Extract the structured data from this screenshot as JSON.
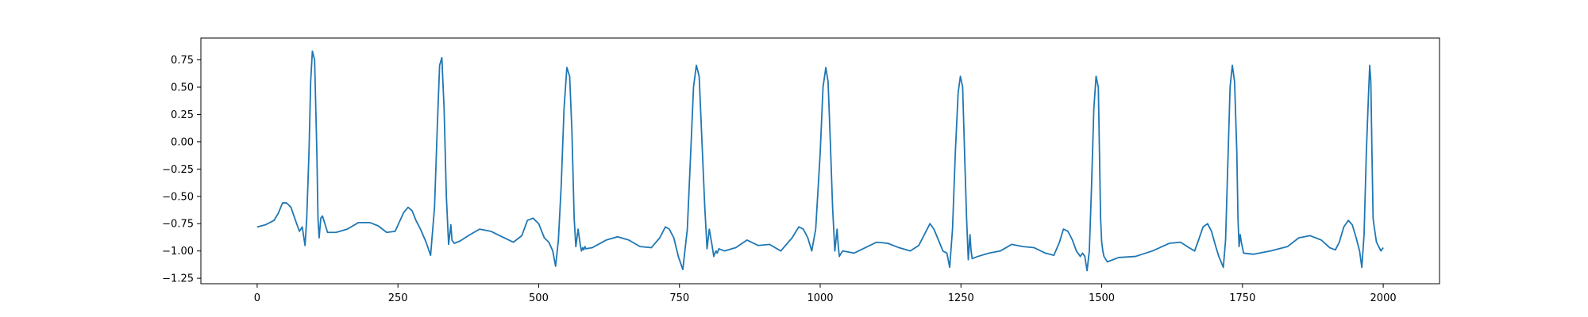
{
  "chart_data": {
    "type": "line",
    "title": "",
    "xlabel": "",
    "ylabel": "",
    "xlim": [
      -100,
      2100
    ],
    "ylim": [
      -1.3,
      0.95
    ],
    "xticks": [
      0,
      250,
      500,
      750,
      1000,
      1250,
      1500,
      1750,
      2000
    ],
    "xtick_labels": [
      "0",
      "250",
      "500",
      "750",
      "1000",
      "1250",
      "1500",
      "1750",
      "2000"
    ],
    "yticks": [
      0.75,
      0.5,
      0.25,
      0.0,
      -0.25,
      -0.5,
      -0.75,
      -1.0,
      -1.25
    ],
    "ytick_labels": [
      "0.75",
      "0.50",
      "0.25",
      "0.00",
      "−0.25",
      "−0.50",
      "−0.75",
      "−1.00",
      "−1.25"
    ],
    "grid": false,
    "series": [
      {
        "color": "#1f77b4",
        "x": [
          0,
          15,
          30,
          38,
          45,
          52,
          60,
          68,
          75,
          80,
          85,
          88,
          92,
          95,
          98,
          102,
          106,
          108,
          110,
          113,
          116,
          125,
          140,
          160,
          180,
          200,
          215,
          230,
          245,
          260,
          268,
          275,
          282,
          290,
          300,
          308,
          315,
          320,
          324,
          328,
          332,
          336,
          340,
          342,
          344,
          346,
          350,
          360,
          375,
          395,
          415,
          435,
          455,
          470,
          480,
          490,
          500,
          510,
          518,
          525,
          530,
          535,
          540,
          545,
          550,
          555,
          559,
          563,
          566,
          570,
          574,
          576,
          578,
          580,
          582,
          584,
          595,
          620,
          640,
          660,
          680,
          700,
          715,
          725,
          732,
          740,
          748,
          756,
          764,
          770,
          775,
          780,
          785,
          790,
          795,
          799,
          803,
          807,
          811,
          813,
          815,
          817,
          820,
          830,
          850,
          870,
          890,
          910,
          930,
          950,
          962,
          970,
          978,
          985,
          992,
          1000,
          1005,
          1010,
          1014,
          1018,
          1022,
          1026,
          1030,
          1032,
          1034,
          1036,
          1040,
          1060,
          1080,
          1100,
          1120,
          1140,
          1160,
          1175,
          1185,
          1195,
          1202,
          1210,
          1218,
          1225,
          1230,
          1235,
          1240,
          1245,
          1249,
          1253,
          1257,
          1260,
          1263,
          1266,
          1268,
          1270,
          1280,
          1300,
          1320,
          1340,
          1360,
          1380,
          1400,
          1415,
          1425,
          1432,
          1440,
          1448,
          1455,
          1462,
          1466,
          1470,
          1474,
          1478,
          1482,
          1486,
          1490,
          1494,
          1496,
          1498,
          1500,
          1502,
          1504,
          1510,
          1530,
          1560,
          1590,
          1620,
          1640,
          1655,
          1665,
          1672,
          1680,
          1688,
          1695,
          1702,
          1708,
          1712,
          1716,
          1720,
          1724,
          1728,
          1732,
          1736,
          1740,
          1742,
          1744,
          1746,
          1748,
          1752,
          1770,
          1800,
          1830,
          1850,
          1870,
          1890,
          1905,
          1915,
          1922,
          1930,
          1938,
          1945,
          1952,
          1958,
          1962,
          1966,
          1970,
          1974,
          1976,
          1978,
          1980,
          1982,
          1984,
          1988,
          1992,
          1996,
          2000
        ],
        "y": [
          -0.78,
          -0.76,
          -0.72,
          -0.65,
          -0.56,
          -0.56,
          -0.6,
          -0.72,
          -0.82,
          -0.78,
          -0.95,
          -0.7,
          -0.1,
          0.55,
          0.83,
          0.75,
          -0.1,
          -0.7,
          -0.88,
          -0.7,
          -0.68,
          -0.83,
          -0.83,
          -0.8,
          -0.74,
          -0.74,
          -0.77,
          -0.83,
          -0.82,
          -0.65,
          -0.6,
          -0.63,
          -0.72,
          -0.8,
          -0.92,
          -1.04,
          -0.6,
          0.15,
          0.7,
          0.77,
          0.3,
          -0.5,
          -0.94,
          -0.85,
          -0.76,
          -0.9,
          -0.93,
          -0.91,
          -0.86,
          -0.8,
          -0.82,
          -0.87,
          -0.92,
          -0.86,
          -0.72,
          -0.7,
          -0.75,
          -0.88,
          -0.92,
          -1.0,
          -1.14,
          -0.9,
          -0.4,
          0.3,
          0.68,
          0.6,
          0.1,
          -0.7,
          -0.96,
          -0.8,
          -0.95,
          -1.0,
          -0.97,
          -0.99,
          -0.96,
          -0.98,
          -0.97,
          -0.9,
          -0.87,
          -0.9,
          -0.96,
          -0.97,
          -0.88,
          -0.78,
          -0.8,
          -0.88,
          -1.05,
          -1.17,
          -0.8,
          -0.1,
          0.5,
          0.7,
          0.6,
          0.0,
          -0.6,
          -0.98,
          -0.8,
          -0.92,
          -1.05,
          -1.02,
          -1.0,
          -1.02,
          -0.98,
          -1.0,
          -0.97,
          -0.9,
          -0.95,
          -0.94,
          -1.0,
          -0.88,
          -0.78,
          -0.8,
          -0.88,
          -1.0,
          -0.8,
          -0.1,
          0.5,
          0.68,
          0.55,
          0.0,
          -0.6,
          -1.0,
          -0.8,
          -0.95,
          -1.05,
          -1.03,
          -1.0,
          -1.02,
          -0.97,
          -0.92,
          -0.93,
          -0.97,
          -1.0,
          -0.95,
          -0.85,
          -0.75,
          -0.8,
          -0.9,
          -1.0,
          -1.02,
          -1.15,
          -0.8,
          -0.1,
          0.45,
          0.6,
          0.5,
          -0.2,
          -0.7,
          -1.08,
          -0.85,
          -1.0,
          -1.07,
          -1.05,
          -1.02,
          -1.0,
          -0.94,
          -0.96,
          -0.97,
          -1.02,
          -1.04,
          -0.92,
          -0.8,
          -0.82,
          -0.9,
          -1.0,
          -1.05,
          -1.02,
          -1.05,
          -1.18,
          -1.0,
          -0.4,
          0.3,
          0.6,
          0.5,
          -0.1,
          -0.7,
          -0.92,
          -1.0,
          -1.05,
          -1.1,
          -1.06,
          -1.05,
          -1.0,
          -0.93,
          -0.92,
          -0.97,
          -1.0,
          -0.9,
          -0.78,
          -0.75,
          -0.82,
          -0.95,
          -1.05,
          -1.1,
          -1.15,
          -0.9,
          -0.2,
          0.5,
          0.7,
          0.55,
          -0.1,
          -0.7,
          -0.96,
          -0.85,
          -0.92,
          -1.02,
          -1.03,
          -1.0,
          -0.96,
          -0.88,
          -0.86,
          -0.9,
          -0.97,
          -0.99,
          -0.92,
          -0.78,
          -0.72,
          -0.76,
          -0.88,
          -1.0,
          -1.15,
          -0.85,
          -0.1,
          0.45,
          0.7,
          0.55,
          -0.1,
          -0.7,
          -0.78,
          -0.92,
          -0.96,
          -1.0,
          -0.97
        ]
      }
    ]
  }
}
